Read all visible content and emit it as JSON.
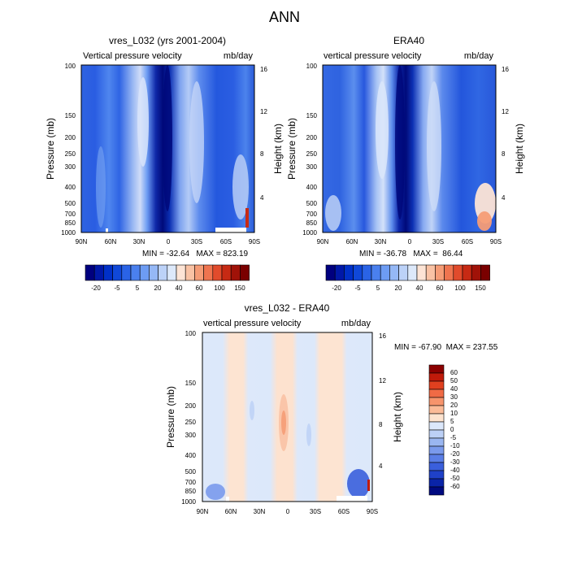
{
  "figure_title": "ANN",
  "chart_data": [
    {
      "type": "heatmap",
      "title": "vres_L032 (yrs 2001-2004)",
      "subtitle_left": "Vertical pressure velocity",
      "subtitle_right": "mb/day",
      "ylabel": "Pressure (mb)",
      "ylabel_right": "Height (km)",
      "x_ticks": [
        "90N",
        "60N",
        "30N",
        "0",
        "30S",
        "60S",
        "90S"
      ],
      "y_ticks": [
        "100",
        "150",
        "200",
        "250",
        "300",
        "400",
        "500",
        "700",
        "850",
        "1000"
      ],
      "y_ticks_right": [
        "16",
        "12",
        "8",
        "4"
      ],
      "stats": "MIN = -32.64   MAX = 823.19",
      "colorbar": {
        "orientation": "horizontal",
        "colors": [
          "#00007f",
          "#0018a8",
          "#0030c8",
          "#1048d8",
          "#2a63e6",
          "#4a80ee",
          "#6d9cf3",
          "#95b8f6",
          "#bcd2f8",
          "#dde9fa",
          "#fde4d5",
          "#f9c2a4",
          "#f59c76",
          "#ef744f",
          "#e14b2c",
          "#c72a14",
          "#a01208",
          "#7a0000"
        ],
        "labels": [
          "-20",
          "-5",
          "5",
          "20",
          "40",
          "60",
          "100",
          "150"
        ]
      }
    },
    {
      "type": "heatmap",
      "title": "ERA40",
      "subtitle_left": "vertical pressure velocity",
      "subtitle_right": "mb/day",
      "ylabel": "Pressure (mb)",
      "ylabel_right": "Height (km)",
      "x_ticks": [
        "90N",
        "60N",
        "30N",
        "0",
        "30S",
        "60S",
        "90S"
      ],
      "y_ticks": [
        "100",
        "150",
        "200",
        "250",
        "300",
        "400",
        "500",
        "700",
        "850",
        "1000"
      ],
      "y_ticks_right": [
        "16",
        "12",
        "8",
        "4"
      ],
      "stats": "MIN = -36.78   MAX =  86.44",
      "colorbar": {
        "orientation": "horizontal",
        "colors": [
          "#00007f",
          "#0018a8",
          "#0030c8",
          "#1048d8",
          "#2a63e6",
          "#4a80ee",
          "#6d9cf3",
          "#95b8f6",
          "#bcd2f8",
          "#dde9fa",
          "#fde4d5",
          "#f9c2a4",
          "#f59c76",
          "#ef744f",
          "#e14b2c",
          "#c72a14",
          "#a01208",
          "#7a0000"
        ],
        "labels": [
          "-20",
          "-5",
          "5",
          "20",
          "40",
          "60",
          "100",
          "150"
        ]
      }
    },
    {
      "type": "heatmap",
      "title": "vres_L032 - ERA40",
      "subtitle_left": "vertical pressure velocity",
      "subtitle_right": "mb/day",
      "ylabel": "Pressure (mb)",
      "ylabel_right": "Height (km)",
      "x_ticks": [
        "90N",
        "60N",
        "30N",
        "0",
        "30S",
        "60S",
        "90S"
      ],
      "y_ticks": [
        "100",
        "150",
        "200",
        "250",
        "300",
        "400",
        "500",
        "700",
        "850",
        "1000"
      ],
      "y_ticks_right": [
        "16",
        "12",
        "8",
        "4"
      ],
      "stats": "MIN = -67.90  MAX = 237.55",
      "colorbar": {
        "orientation": "vertical",
        "colors": [
          "#8b0000",
          "#c01a0a",
          "#e0401f",
          "#f06a45",
          "#f7946c",
          "#fbbb98",
          "#fde3cf",
          "#dce8fb",
          "#bcd0f6",
          "#9ab6f1",
          "#7a9aec",
          "#5a7ee6",
          "#3a5fdc",
          "#1f41c8",
          "#0a24a8",
          "#000a80"
        ],
        "labels": [
          "60",
          "50",
          "40",
          "30",
          "20",
          "10",
          "5",
          "0",
          "-5",
          "-10",
          "-20",
          "-30",
          "-40",
          "-50",
          "-60"
        ]
      }
    }
  ]
}
